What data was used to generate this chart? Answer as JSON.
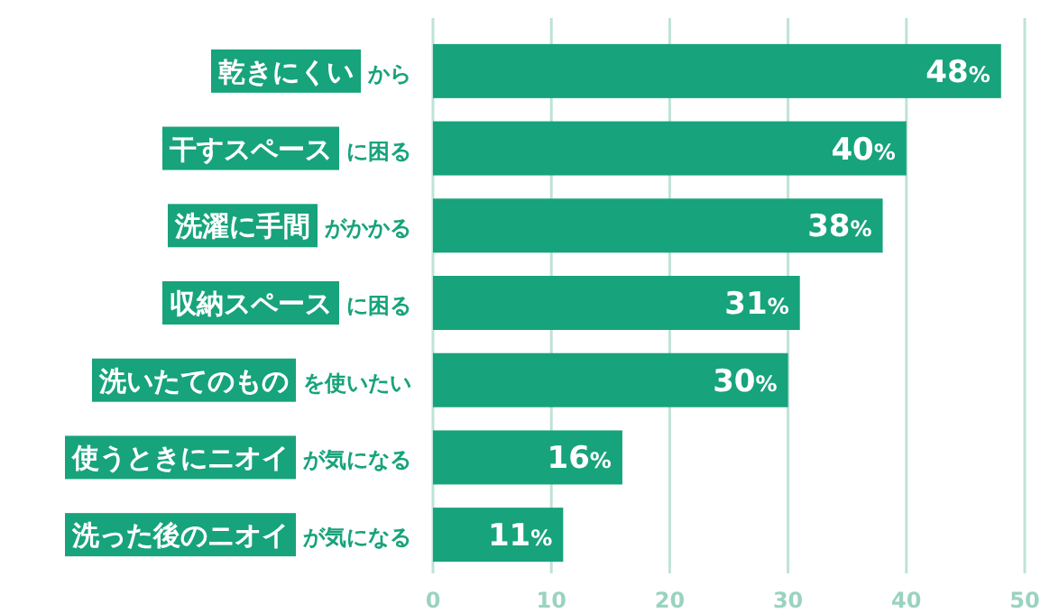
{
  "chart_data": {
    "type": "bar",
    "orientation": "horizontal",
    "categories": [
      "**乾きにくい**から",
      "**干すスペース**に困る",
      "**洗濯に手間**がかかる",
      "**収納スペース**に困る",
      "**洗いたてのもの**を使いたい",
      "**使うときにニオイ**が気になる",
      "**洗った後のニオイ**が気になる"
    ],
    "values": [
      48,
      40,
      38,
      31,
      30,
      16,
      11
    ],
    "value_labels": [
      "48%",
      "40%",
      "38%",
      "31%",
      "30%",
      "16%",
      "11%"
    ],
    "color": "#17a37b",
    "xlim": [
      0,
      50
    ],
    "xticks": [
      0,
      10,
      20,
      30,
      40,
      50
    ],
    "grid": "x"
  }
}
